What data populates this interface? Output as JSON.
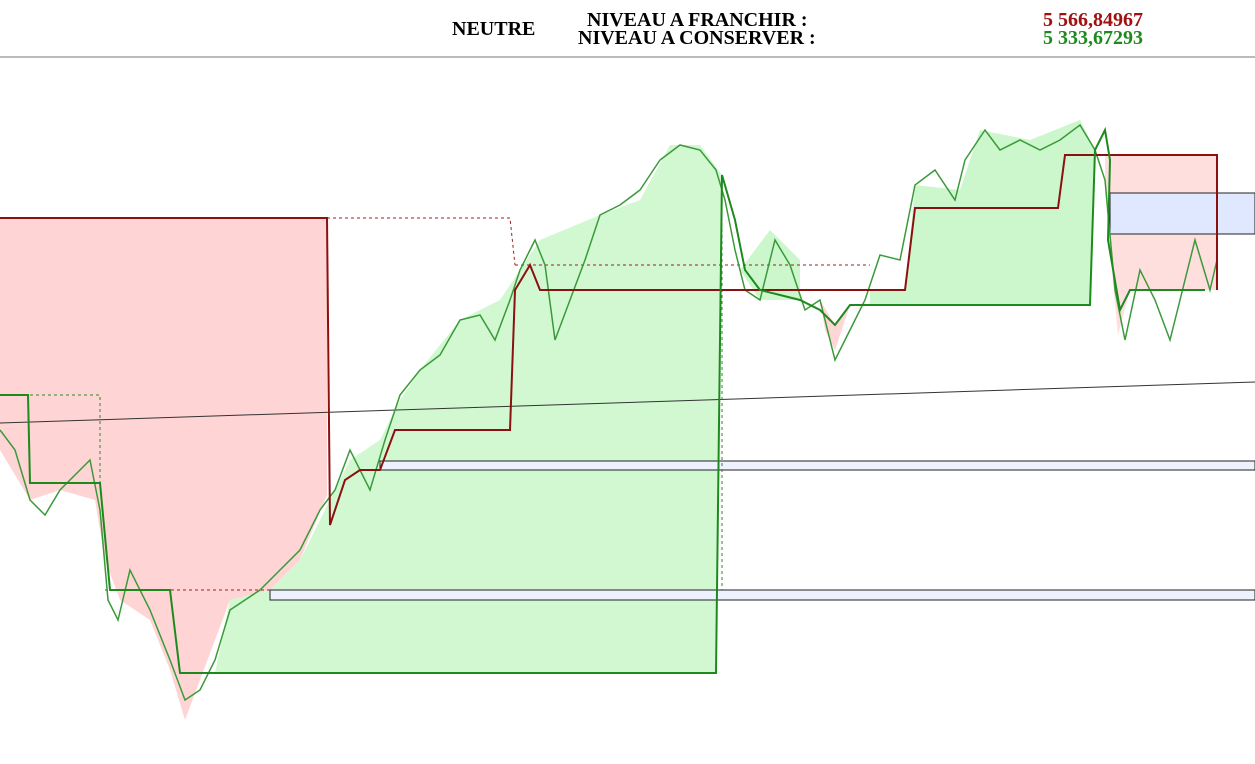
{
  "header": {
    "status": "NEUTRE",
    "levels": [
      {
        "label": "NIVEAU A FRANCHIR :",
        "value": "5 566,84967"
      },
      {
        "label": "NIVEAU A CONSERVER :",
        "value": "5 333,67293"
      }
    ]
  }
}
